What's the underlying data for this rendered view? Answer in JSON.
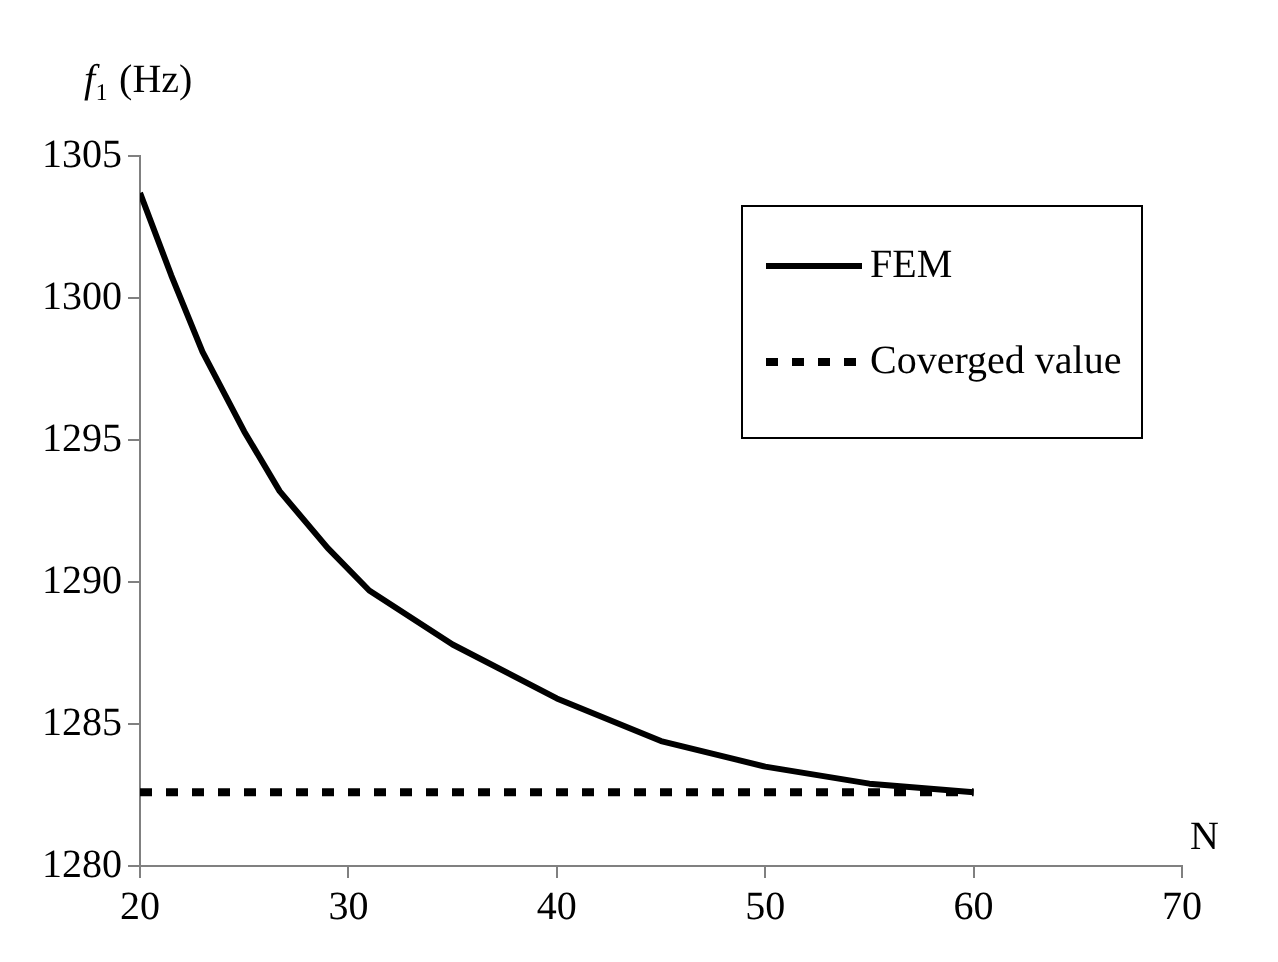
{
  "chart_data": {
    "type": "line",
    "ylabel": "f₁ (Hz)",
    "xlabel": "N",
    "xlim": [
      20,
      70
    ],
    "xticks": [
      20,
      30,
      40,
      50,
      60,
      70
    ],
    "ylim": [
      1280,
      1305
    ],
    "yticks": [
      1280,
      1285,
      1290,
      1295,
      1300,
      1305
    ],
    "grid": false,
    "legend": "top right",
    "marker": "none",
    "series": [
      {
        "name": "FEM",
        "color": "#000000",
        "line_style": "solid",
        "x": [
          20,
          21.5,
          23,
          25,
          26.7,
          29,
          31,
          35,
          40,
          45,
          50,
          55,
          60
        ],
        "values": [
          1303.7,
          1300.8,
          1298.1,
          1295.3,
          1293.2,
          1291.2,
          1289.7,
          1287.8,
          1285.9,
          1284.4,
          1283.5,
          1282.9,
          1282.6
        ]
      },
      {
        "name": "Coverged value",
        "color": "#000000",
        "line_style": "dotted",
        "x": [
          20,
          60
        ],
        "values": [
          1282.6,
          1282.6
        ]
      }
    ]
  }
}
